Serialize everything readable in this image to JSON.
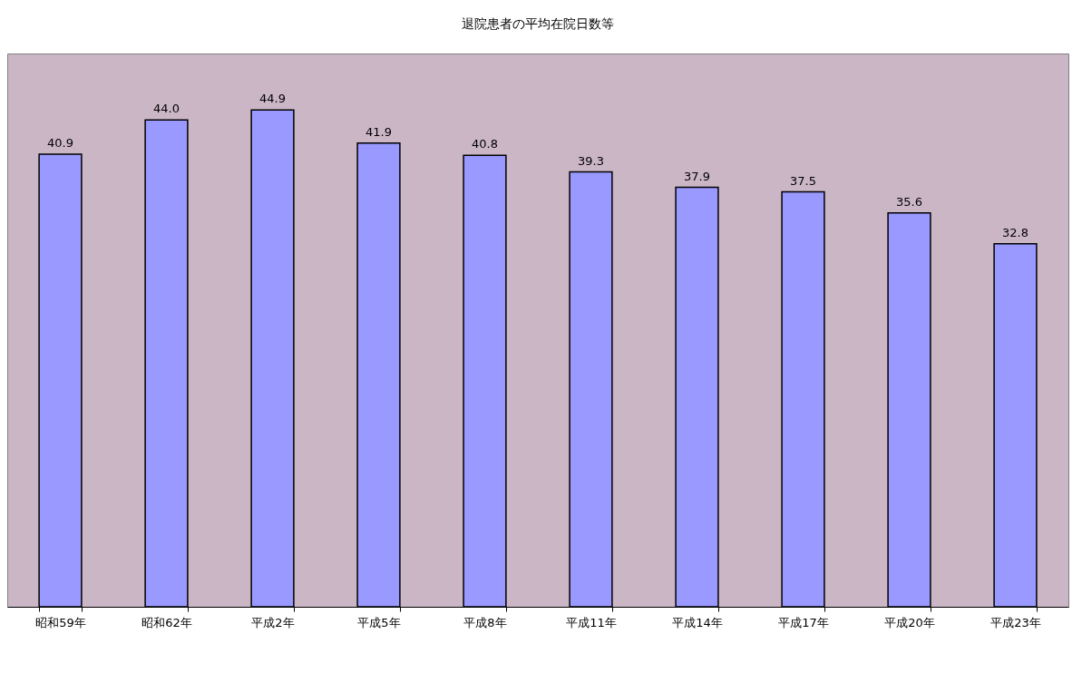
{
  "chart_data": {
    "type": "bar",
    "title": "退院患者の平均在院日数等",
    "categories": [
      "昭和59年",
      "昭和62年",
      "平成2年",
      "平成5年",
      "平成8年",
      "平成11年",
      "平成14年",
      "平成17年",
      "平成20年",
      "平成23年"
    ],
    "values": [
      40.9,
      44.0,
      44.9,
      41.9,
      40.8,
      39.3,
      37.9,
      37.5,
      35.6,
      32.8
    ],
    "value_labels": [
      "40.9",
      "44.0",
      "44.9",
      "41.9",
      "40.8",
      "39.3",
      "37.9",
      "37.5",
      "35.6",
      "32.8"
    ],
    "color": "#9999ff",
    "ylim": [
      0,
      50
    ],
    "tick_labels": "x"
  }
}
